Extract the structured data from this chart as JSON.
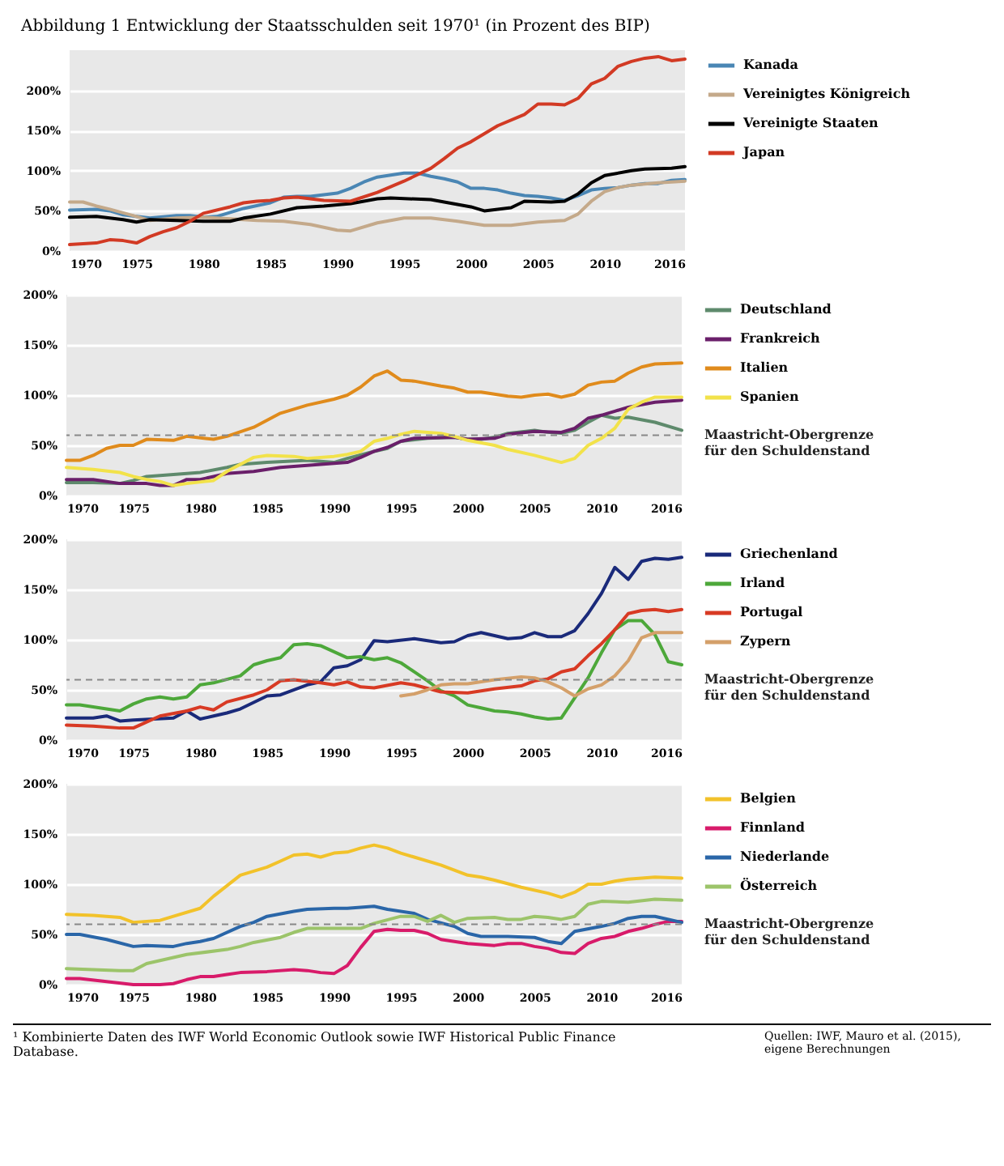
{
  "chart_data": [
    {
      "type": "line",
      "title": "Abbildung 1  Entwicklung der Staatsschulden seit 1970¹ (in Prozent des BIP)",
      "xlim": [
        1970,
        2016
      ],
      "xticks": [
        1970,
        1975,
        1980,
        1985,
        1990,
        1995,
        2000,
        2005,
        2010,
        2016
      ],
      "ylim": [
        0,
        250
      ],
      "yticks": [
        {
          "value": 0,
          "label": "0%"
        },
        {
          "value": 50,
          "label": "50%"
        },
        {
          "value": 100,
          "label": "100%"
        },
        {
          "value": 150,
          "label": "150%"
        },
        {
          "value": 200,
          "label": "200%"
        }
      ],
      "grid": "y",
      "legend": "right",
      "series": [
        {
          "name": "Kanada",
          "color": "#4a86b4",
          "x": [
            1970,
            1972,
            1973,
            1974,
            1976,
            1978,
            1979,
            1980,
            1981,
            1983,
            1985,
            1986,
            1987,
            1988,
            1989,
            1990,
            1991,
            1992,
            1993,
            1995,
            1996,
            1997,
            1998,
            1999,
            2000,
            2001,
            2002,
            2003,
            2004,
            2005,
            2006,
            2007,
            2008,
            2009,
            2010,
            2011,
            2012,
            2013,
            2014,
            2015,
            2016
          ],
          "values": [
            51,
            52,
            50,
            45,
            41,
            44,
            44,
            42,
            43,
            53,
            60,
            67,
            68,
            68,
            70,
            72,
            78,
            86,
            92,
            97,
            97,
            93,
            90,
            86,
            78,
            78,
            76,
            72,
            69,
            68,
            66,
            63,
            69,
            76,
            78,
            79,
            82,
            84,
            84,
            88,
            89
          ]
        },
        {
          "name": "Vereinigtes Königreich",
          "color": "#c4a98a",
          "x": [
            1970,
            1971,
            1972,
            1973,
            1975,
            1976,
            1978,
            1980,
            1982,
            1984,
            1986,
            1988,
            1990,
            1991,
            1993,
            1995,
            1997,
            1999,
            2001,
            2003,
            2005,
            2007,
            2008,
            2009,
            2010,
            2011,
            2012,
            2014,
            2016
          ],
          "values": [
            61,
            61,
            56,
            52,
            43,
            38,
            41,
            42,
            40,
            38,
            37,
            33,
            26,
            25,
            35,
            41,
            41,
            37,
            32,
            32,
            36,
            38,
            46,
            62,
            74,
            79,
            82,
            85,
            87
          ]
        },
        {
          "name": "Vereinigte Staaten",
          "color": "#000000",
          "x": [
            1970,
            1972,
            1974,
            1975,
            1976,
            1978,
            1980,
            1982,
            1983,
            1985,
            1987,
            1989,
            1991,
            1993,
            1994,
            1997,
            1999,
            2000,
            2001,
            2003,
            2004,
            2006,
            2007,
            2008,
            2009,
            2010,
            2012,
            2013,
            2015,
            2016
          ],
          "values": [
            42,
            43,
            39,
            36,
            39,
            38,
            37,
            37,
            41,
            46,
            54,
            56,
            59,
            65,
            66,
            64,
            58,
            55,
            50,
            54,
            62,
            61,
            62,
            71,
            85,
            94,
            100,
            102,
            103,
            105
          ]
        },
        {
          "name": "Japan",
          "color": "#d23a24",
          "x": [
            1970,
            1972,
            1973,
            1974,
            1975,
            1976,
            1977,
            1978,
            1979,
            1980,
            1982,
            1983,
            1984,
            1985,
            1986,
            1987,
            1989,
            1991,
            1993,
            1995,
            1997,
            1998,
            1999,
            2000,
            2002,
            2004,
            2005,
            2006,
            2007,
            2008,
            2009,
            2010,
            2011,
            2012,
            2013,
            2014,
            2015,
            2016
          ],
          "values": [
            8,
            10,
            14,
            13,
            10,
            18,
            24,
            29,
            37,
            47,
            55,
            60,
            62,
            63,
            66,
            67,
            63,
            62,
            73,
            87,
            103,
            115,
            128,
            136,
            156,
            170,
            183,
            183,
            182,
            190,
            208,
            215,
            230,
            236,
            240,
            242,
            237,
            239
          ]
        }
      ]
    },
    {
      "type": "line",
      "xlim": [
        1970,
        2016
      ],
      "xticks": [
        1970,
        1975,
        1980,
        1985,
        1990,
        1995,
        2000,
        2005,
        2010,
        2016
      ],
      "ylim": [
        0,
        200
      ],
      "yticks": [
        {
          "value": 0,
          "label": "0%"
        },
        {
          "value": 50,
          "label": "50%"
        },
        {
          "value": 100,
          "label": "100%"
        },
        {
          "value": 150,
          "label": "150%"
        },
        {
          "value": 200,
          "label": "200%"
        }
      ],
      "grid": "y",
      "legend": "right",
      "ref_lines": [
        {
          "axis": "y",
          "value": 60,
          "label": "Maastricht-Obergrenze für den Schuldenstand",
          "color": "#888888",
          "line_style": "dashed"
        }
      ],
      "series": [
        {
          "name": "Deutschland",
          "color": "#5e8a6c",
          "x": [
            1970,
            1972,
            1974,
            1975,
            1976,
            1978,
            1980,
            1982,
            1983,
            1985,
            1988,
            1990,
            1991,
            1993,
            1994,
            1995,
            1997,
            1999,
            2000,
            2001,
            2002,
            2003,
            2005,
            2006,
            2007,
            2008,
            2009,
            2010,
            2011,
            2012,
            2014,
            2016
          ],
          "values": [
            13,
            13,
            12,
            15,
            19,
            21,
            23,
            28,
            31,
            33,
            35,
            33,
            37,
            44,
            47,
            54,
            57,
            58,
            56,
            56,
            58,
            62,
            65,
            63,
            62,
            65,
            73,
            80,
            77,
            78,
            73,
            65
          ]
        },
        {
          "name": "Frankreich",
          "color": "#6a1f6a",
          "x": [
            1970,
            1972,
            1974,
            1975,
            1976,
            1977,
            1978,
            1979,
            1980,
            1981,
            1982,
            1984,
            1986,
            1988,
            1990,
            1991,
            1992,
            1993,
            1994,
            1995,
            1996,
            1999,
            2000,
            2002,
            2003,
            2005,
            2007,
            2008,
            2009,
            2010,
            2011,
            2012,
            2014,
            2016
          ],
          "values": [
            16,
            16,
            12,
            12,
            12,
            10,
            10,
            16,
            16,
            19,
            22,
            24,
            28,
            30,
            32,
            33,
            38,
            44,
            48,
            54,
            57,
            58,
            56,
            57,
            61,
            64,
            63,
            67,
            77,
            80,
            84,
            88,
            93,
            95
          ]
        },
        {
          "name": "Italien",
          "color": "#e08b1c",
          "x": [
            1970,
            1971,
            1972,
            1973,
            1974,
            1975,
            1976,
            1978,
            1979,
            1981,
            1982,
            1984,
            1986,
            1988,
            1990,
            1991,
            1992,
            1993,
            1994,
            1995,
            1996,
            1998,
            1999,
            2000,
            2001,
            2003,
            2004,
            2005,
            2006,
            2007,
            2008,
            2009,
            2010,
            2011,
            2012,
            2013,
            2014,
            2016
          ],
          "values": [
            35,
            35,
            40,
            47,
            50,
            50,
            56,
            55,
            59,
            56,
            59,
            68,
            82,
            90,
            96,
            100,
            108,
            119,
            124,
            115,
            114,
            109,
            107,
            103,
            103,
            99,
            98,
            100,
            101,
            98,
            101,
            110,
            113,
            114,
            122,
            128,
            131,
            132
          ]
        },
        {
          "name": "Spanien",
          "color": "#f2e24a",
          "x": [
            1970,
            1972,
            1974,
            1975,
            1976,
            1977,
            1978,
            1979,
            1981,
            1982,
            1983,
            1984,
            1985,
            1987,
            1988,
            1990,
            1991,
            1992,
            1993,
            1994,
            1995,
            1996,
            1998,
            1999,
            2000,
            2002,
            2003,
            2005,
            2007,
            2008,
            2009,
            2010,
            2011,
            2012,
            2013,
            2014,
            2016
          ],
          "values": [
            28,
            26,
            23,
            19,
            16,
            14,
            10,
            12,
            15,
            24,
            31,
            38,
            40,
            39,
            37,
            39,
            41,
            44,
            54,
            57,
            61,
            64,
            62,
            59,
            55,
            50,
            46,
            40,
            33,
            37,
            50,
            57,
            67,
            86,
            93,
            98,
            98
          ]
        }
      ]
    },
    {
      "type": "line",
      "xlim": [
        1970,
        2016
      ],
      "xticks": [
        1970,
        1975,
        1980,
        1985,
        1990,
        1995,
        2000,
        2005,
        2010,
        2016
      ],
      "ylim": [
        0,
        200
      ],
      "yticks": [
        {
          "value": 0,
          "label": "0%"
        },
        {
          "value": 50,
          "label": "50%"
        },
        {
          "value": 100,
          "label": "100%"
        },
        {
          "value": 150,
          "label": "150%"
        },
        {
          "value": 200,
          "label": "200%"
        }
      ],
      "grid": "y",
      "legend": "right",
      "ref_lines": [
        {
          "axis": "y",
          "value": 60,
          "label": "Maastricht-Obergrenze für den Schuldenstand",
          "color": "#888888",
          "line_style": "dashed"
        }
      ],
      "series": [
        {
          "name": "Griechenland",
          "color": "#1a2a7a",
          "x": [
            1970,
            1972,
            1973,
            1974,
            1975,
            1978,
            1979,
            1980,
            1981,
            1982,
            1983,
            1985,
            1986,
            1988,
            1989,
            1990,
            1991,
            1992,
            1993,
            1994,
            1996,
            1998,
            1999,
            2000,
            2001,
            2003,
            2004,
            2005,
            2006,
            2007,
            2008,
            2009,
            2010,
            2011,
            2012,
            2013,
            2014,
            2015,
            2016
          ],
          "values": [
            22,
            22,
            24,
            19,
            20,
            22,
            29,
            21,
            24,
            27,
            31,
            44,
            45,
            55,
            58,
            72,
            74,
            80,
            99,
            98,
            101,
            97,
            98,
            104,
            107,
            101,
            102,
            107,
            103,
            103,
            109,
            126,
            146,
            172,
            160,
            178,
            181,
            180,
            182
          ]
        },
        {
          "name": "Irland",
          "color": "#4da83a",
          "x": [
            1970,
            1971,
            1973,
            1974,
            1975,
            1976,
            1977,
            1978,
            1979,
            1980,
            1981,
            1983,
            1984,
            1985,
            1986,
            1987,
            1988,
            1989,
            1990,
            1991,
            1992,
            1993,
            1994,
            1995,
            1996,
            1997,
            1998,
            1999,
            2000,
            2001,
            2002,
            2003,
            2004,
            2005,
            2006,
            2007,
            2008,
            2009,
            2010,
            2011,
            2012,
            2013,
            2014,
            2015,
            2016
          ],
          "values": [
            35,
            35,
            31,
            29,
            36,
            41,
            43,
            41,
            43,
            55,
            57,
            64,
            75,
            79,
            82,
            95,
            96,
            94,
            88,
            82,
            83,
            80,
            82,
            77,
            68,
            59,
            49,
            44,
            35,
            32,
            29,
            28,
            26,
            23,
            21,
            22,
            42,
            62,
            87,
            110,
            119,
            119,
            105,
            78,
            75
          ]
        },
        {
          "name": "Portugal",
          "color": "#d83a24",
          "x": [
            1970,
            1972,
            1974,
            1975,
            1976,
            1977,
            1979,
            1980,
            1981,
            1982,
            1984,
            1985,
            1986,
            1987,
            1989,
            1990,
            1991,
            1992,
            1993,
            1995,
            1996,
            1998,
            2000,
            2002,
            2004,
            2005,
            2006,
            2007,
            2008,
            2009,
            2010,
            2011,
            2012,
            2013,
            2014,
            2015,
            2016
          ],
          "values": [
            15,
            14,
            12,
            12,
            18,
            24,
            29,
            33,
            30,
            38,
            45,
            50,
            59,
            60,
            57,
            55,
            58,
            53,
            52,
            57,
            55,
            48,
            47,
            51,
            54,
            59,
            61,
            68,
            71,
            84,
            96,
            110,
            126,
            129,
            130,
            128,
            130
          ]
        },
        {
          "name": "Zypern",
          "color": "#d4a06a",
          "x": [
            1995,
            1996,
            1997,
            1998,
            1999,
            2000,
            2002,
            2004,
            2005,
            2006,
            2007,
            2008,
            2009,
            2010,
            2011,
            2012,
            2013,
            2014,
            2016
          ],
          "values": [
            44,
            46,
            50,
            55,
            56,
            56,
            60,
            63,
            62,
            58,
            52,
            44,
            51,
            55,
            64,
            79,
            102,
            107,
            107
          ]
        }
      ]
    },
    {
      "type": "line",
      "xlim": [
        1970,
        2016
      ],
      "xticks": [
        1970,
        1975,
        1980,
        1985,
        1990,
        1995,
        2000,
        2005,
        2010,
        2016
      ],
      "ylim": [
        0,
        200
      ],
      "yticks": [
        {
          "value": 0,
          "label": "0%"
        },
        {
          "value": 50,
          "label": "50%"
        },
        {
          "value": 100,
          "label": "100%"
        },
        {
          "value": 150,
          "label": "150%"
        },
        {
          "value": 200,
          "label": "200%"
        }
      ],
      "grid": "y",
      "legend": "right",
      "ref_lines": [
        {
          "axis": "y",
          "value": 60,
          "label": "Maastricht-Obergrenze für den Schuldenstand",
          "color": "#888888",
          "line_style": "dashed"
        }
      ],
      "annotations": [
        "¹ Kombinierte Daten des IWF World Economic Outlook sowie IWF Historical Public Finance Database.",
        "Quellen: IWF, Mauro et al. (2015), eigene Berechnungen"
      ],
      "series": [
        {
          "name": "Belgien",
          "color": "#f2c22a",
          "x": [
            1970,
            1972,
            1974,
            1975,
            1976,
            1977,
            1978,
            1980,
            1981,
            1983,
            1985,
            1986,
            1987,
            1988,
            1989,
            1990,
            1991,
            1992,
            1993,
            1994,
            1995,
            1996,
            1998,
            2000,
            2001,
            2002,
            2004,
            2006,
            2007,
            2008,
            2009,
            2010,
            2011,
            2012,
            2014,
            2016
          ],
          "values": [
            70,
            69,
            67,
            62,
            63,
            64,
            68,
            76,
            88,
            109,
            117,
            123,
            129,
            130,
            127,
            131,
            132,
            136,
            139,
            136,
            131,
            127,
            119,
            109,
            107,
            104,
            97,
            91,
            87,
            92,
            100,
            100,
            103,
            105,
            107,
            106
          ]
        },
        {
          "name": "Finnland",
          "color": "#d81b6a",
          "x": [
            1970,
            1971,
            1973,
            1975,
            1977,
            1978,
            1979,
            1980,
            1981,
            1982,
            1983,
            1985,
            1987,
            1988,
            1989,
            1990,
            1991,
            1992,
            1993,
            1994,
            1995,
            1996,
            1997,
            1998,
            1999,
            2000,
            2002,
            2003,
            2004,
            2005,
            2006,
            2007,
            2008,
            2009,
            2010,
            2011,
            2012,
            2013,
            2014,
            2015,
            2016
          ],
          "values": [
            6,
            6,
            3,
            0,
            0,
            1,
            5,
            8,
            8,
            10,
            12,
            13,
            15,
            14,
            12,
            11,
            19,
            37,
            53,
            55,
            54,
            54,
            51,
            45,
            43,
            41,
            39,
            41,
            41,
            38,
            36,
            32,
            31,
            41,
            46,
            48,
            53,
            56,
            60,
            63,
            63
          ]
        },
        {
          "name": "Niederlande",
          "color": "#2a66a8",
          "x": [
            1970,
            1971,
            1973,
            1975,
            1976,
            1978,
            1979,
            1980,
            1981,
            1983,
            1984,
            1985,
            1987,
            1988,
            1990,
            1991,
            1993,
            1994,
            1996,
            1997,
            1999,
            2000,
            2001,
            2003,
            2005,
            2006,
            2007,
            2008,
            2010,
            2011,
            2012,
            2013,
            2014,
            2016
          ],
          "values": [
            50,
            50,
            45,
            38,
            39,
            38,
            41,
            43,
            46,
            58,
            62,
            68,
            73,
            75,
            76,
            76,
            78,
            75,
            71,
            65,
            58,
            51,
            48,
            48,
            47,
            43,
            41,
            53,
            58,
            61,
            66,
            68,
            68,
            62
          ]
        },
        {
          "name": "Österreich",
          "color": "#9cc46a",
          "x": [
            1970,
            1972,
            1974,
            1975,
            1976,
            1978,
            1979,
            1982,
            1983,
            1984,
            1986,
            1987,
            1988,
            1990,
            1992,
            1993,
            1995,
            1996,
            1997,
            1998,
            1999,
            2000,
            2002,
            2003,
            2004,
            2005,
            2006,
            2007,
            2008,
            2009,
            2010,
            2012,
            2014,
            2016
          ],
          "values": [
            16,
            15,
            14,
            14,
            21,
            27,
            30,
            35,
            38,
            42,
            47,
            52,
            56,
            56,
            56,
            61,
            68,
            68,
            63,
            69,
            62,
            66,
            67,
            65,
            65,
            68,
            67,
            65,
            68,
            80,
            83,
            82,
            85,
            84
          ]
        }
      ]
    }
  ]
}
